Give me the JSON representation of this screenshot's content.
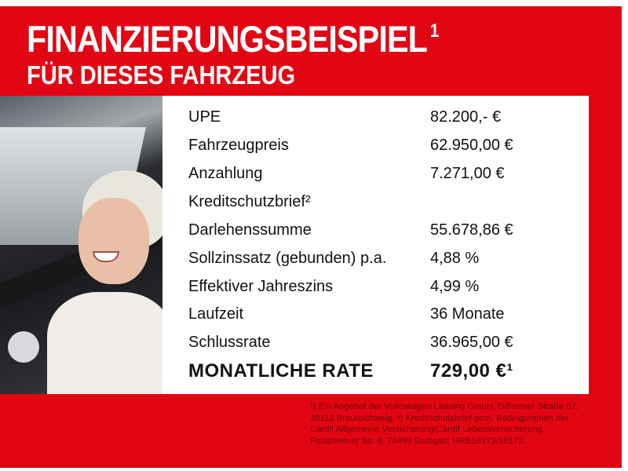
{
  "header": {
    "title": "FINANZIERUNGSBEISPIEL",
    "title_sup": "1",
    "subtitle": "FÜR DIESES FAHRZEUG"
  },
  "rows": [
    {
      "label": "UPE",
      "value": "82.200,- €"
    },
    {
      "label": "Fahrzeugpreis",
      "value": "62.950,00 €"
    },
    {
      "label": "Anzahlung",
      "value": "7.271,00 €"
    },
    {
      "label": "Kreditschutzbrief²",
      "value": ""
    },
    {
      "label": "Darlehenssumme",
      "value": "55.678,86 €"
    },
    {
      "label": "Sollzinssatz (gebunden) p.a.",
      "value": "4,88 %"
    },
    {
      "label": "Effektiver Jahreszins",
      "value": "4,99 %"
    },
    {
      "label": "Laufzeit",
      "value": "36 Monate"
    },
    {
      "label": "Schlussrate",
      "value": "36.965,00 €"
    }
  ],
  "total": {
    "label": "MONATLICHE RATE",
    "value": "729,00 €¹"
  },
  "footnote": "¹) Ein Angebot der Volkswagen Leasing GmbH, Gifhorner Straße 57, 38112 Braunschweig. ²) Kreditschutzbrief gem. Bedingungnen der Cardif Allgemeine Versicherung/Cardif Lebensversicherung, Friolzheimer Str. 6, 70499 Stuttgart; HRB18173/18172.",
  "colors": {
    "brand_red": "#e20613",
    "footnote": "#7a0008"
  }
}
